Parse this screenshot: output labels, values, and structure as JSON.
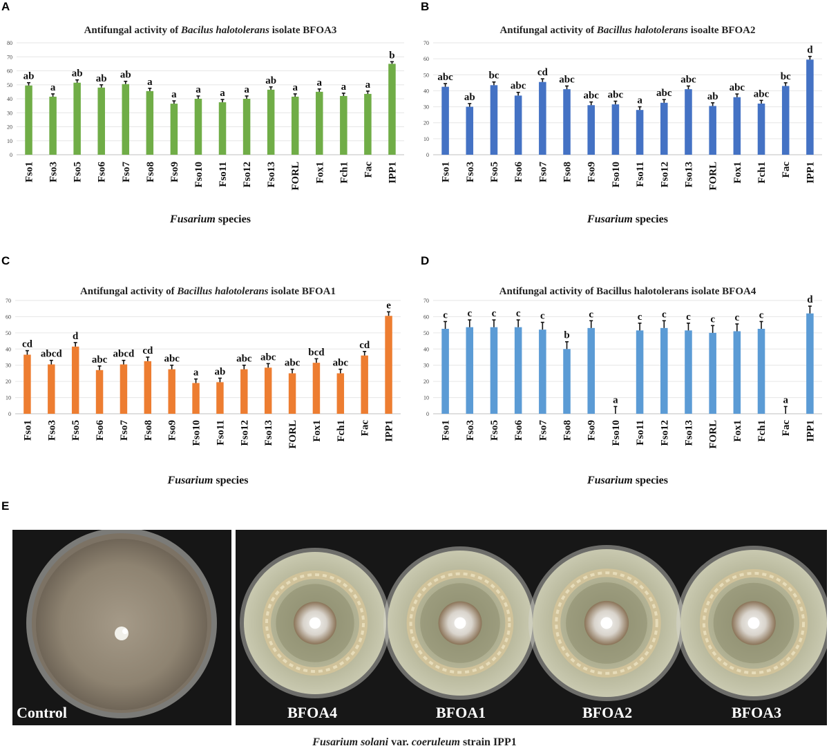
{
  "panels": {
    "a": "A",
    "b": "B",
    "c": "C",
    "d": "D",
    "e": "E"
  },
  "chart_data": [
    {
      "type": "bar",
      "title_prefix": "Antifungal activity of ",
      "title_italic": "Bacilus halotolerans",
      "title_suffix": " isolate BFOA3",
      "xlabel_italic": "Fusarium",
      "xlabel_rest": " species",
      "ylabel": "",
      "ylim": [
        0,
        80
      ],
      "yticks": [
        0,
        10,
        20,
        30,
        40,
        50,
        60,
        70,
        80
      ],
      "color": "#70AD47",
      "categories": [
        "Fso1",
        "Fso3",
        "Fso5",
        "Fso6",
        "Fso7",
        "Fso8",
        "Fso9",
        "Fso10",
        "Fso11",
        "Fso12",
        "Fso13",
        "FORL",
        "Fox1",
        "Fch1",
        "Fac",
        "IPP1"
      ],
      "values": [
        49.5,
        41.5,
        51.5,
        48,
        50.5,
        45.5,
        36.5,
        40,
        37.5,
        40,
        46.5,
        41.5,
        45,
        42,
        43.5,
        65
      ],
      "errors": [
        2,
        2,
        2,
        2,
        2,
        2,
        2,
        2,
        2,
        2,
        2,
        2,
        2,
        2,
        2,
        1.5
      ],
      "letters": [
        "ab",
        "a",
        "ab",
        "ab",
        "ab",
        "a",
        "a",
        "a",
        "a",
        "a",
        "ab",
        "a",
        "a",
        "a",
        "a",
        "b"
      ]
    },
    {
      "type": "bar",
      "title_prefix": "Antifungal activity of ",
      "title_italic": "Bacillus halotolerans",
      "title_suffix": " isoalte BFOA2",
      "xlabel_italic": "Fusarium",
      "xlabel_rest": " species",
      "ylabel": "",
      "ylim": [
        0,
        70
      ],
      "yticks": [
        0,
        10,
        20,
        30,
        40,
        50,
        60,
        70
      ],
      "color": "#4472C4",
      "categories": [
        "Fso1",
        "Fso3",
        "Fso5",
        "Fso6",
        "Fso7",
        "Fso8",
        "Fso9",
        "Fso10",
        "Fso11",
        "Fso12",
        "Fso13",
        "FORL",
        "Fox1",
        "Fch1",
        "Fac",
        "IPP1"
      ],
      "values": [
        42.5,
        30,
        43.5,
        37,
        45.5,
        41,
        31,
        31.5,
        28,
        32.5,
        41,
        30.5,
        36,
        32,
        43,
        59.5
      ],
      "errors": [
        2,
        2,
        2,
        2,
        2,
        2,
        2,
        2,
        2,
        2,
        2,
        2,
        2,
        2,
        2,
        2
      ],
      "letters": [
        "abc",
        "ab",
        "bc",
        "abc",
        "cd",
        "abc",
        "abc",
        "abc",
        "a",
        "abc",
        "abc",
        "ab",
        "abc",
        "abc",
        "bc",
        "d"
      ]
    },
    {
      "type": "bar",
      "title_prefix": "Antifungal activity of ",
      "title_italic": "Bacillus halotolerans",
      "title_suffix": " isolate BFOA1",
      "xlabel_italic": "Fusarium",
      "xlabel_rest": " species",
      "ylabel": "",
      "ylim": [
        0,
        70
      ],
      "yticks": [
        0,
        10,
        20,
        30,
        40,
        50,
        60,
        70
      ],
      "color": "#ED7D31",
      "categories": [
        "Fso1",
        "Fso3",
        "Fso5",
        "Fso6",
        "Fso7",
        "Fso8",
        "Fso9",
        "Fso10",
        "Fso11",
        "Fso12",
        "Fso13",
        "FORL",
        "Fox1",
        "Fch1",
        "Fac",
        "IPP1"
      ],
      "values": [
        36.5,
        30.5,
        41.5,
        27,
        30.5,
        32.5,
        27.5,
        19,
        19.5,
        27.5,
        28.5,
        25,
        31.5,
        25,
        36,
        60.5
      ],
      "errors": [
        2.5,
        2.5,
        2.5,
        2.5,
        2.5,
        2.5,
        2.5,
        2.5,
        2.5,
        2.5,
        2.5,
        2.5,
        2.5,
        2.5,
        2.5,
        2.5
      ],
      "letters": [
        "cd",
        "abcd",
        "d",
        "abc",
        "abcd",
        "cd",
        "abc",
        "a",
        "ab",
        "abc",
        "abc",
        "abc",
        "bcd",
        "abc",
        "cd",
        "e"
      ]
    },
    {
      "type": "bar",
      "title_prefix": "Antifungal activity of ",
      "title_italic": "",
      "title_suffix": "Bacillus halotolerans isolate BFOA4",
      "xlabel_italic": "Fusarium",
      "xlabel_rest": " species",
      "ylabel": "",
      "ylim": [
        0,
        70
      ],
      "yticks": [
        0,
        10,
        20,
        30,
        40,
        50,
        60,
        70
      ],
      "color": "#5B9BD5",
      "categories": [
        "Fso1",
        "Fso3",
        "Fso5",
        "Fso6",
        "Fso7",
        "Fso8",
        "Fso9",
        "Fso10",
        "Fso11",
        "Fso12",
        "Fso13",
        "FORL",
        "Fox1",
        "Fch1",
        "Fac",
        "IPP1"
      ],
      "values": [
        52.5,
        53.5,
        53.5,
        53.5,
        52,
        40,
        53,
        0,
        51.5,
        53,
        51.5,
        50,
        51,
        52.5,
        0,
        62
      ],
      "errors": [
        4.5,
        4.5,
        4.5,
        4.5,
        4.5,
        4.5,
        4.5,
        4.5,
        4.5,
        4.5,
        4.5,
        4.5,
        4.5,
        4.5,
        4.5,
        4.5
      ],
      "letters": [
        "c",
        "c",
        "c",
        "c",
        "c",
        "b",
        "c",
        "a",
        "c",
        "c",
        "c",
        "c",
        "c",
        "c",
        "a",
        "d"
      ]
    }
  ],
  "photo": {
    "labels": [
      "Control",
      "BFOA4",
      "BFOA1",
      "BFOA2",
      "BFOA3"
    ],
    "caption_italic1": "Fusarium solani",
    "caption_mid": " var. ",
    "caption_italic2": "coeruleum",
    "caption_rest": " strain IPP1"
  }
}
